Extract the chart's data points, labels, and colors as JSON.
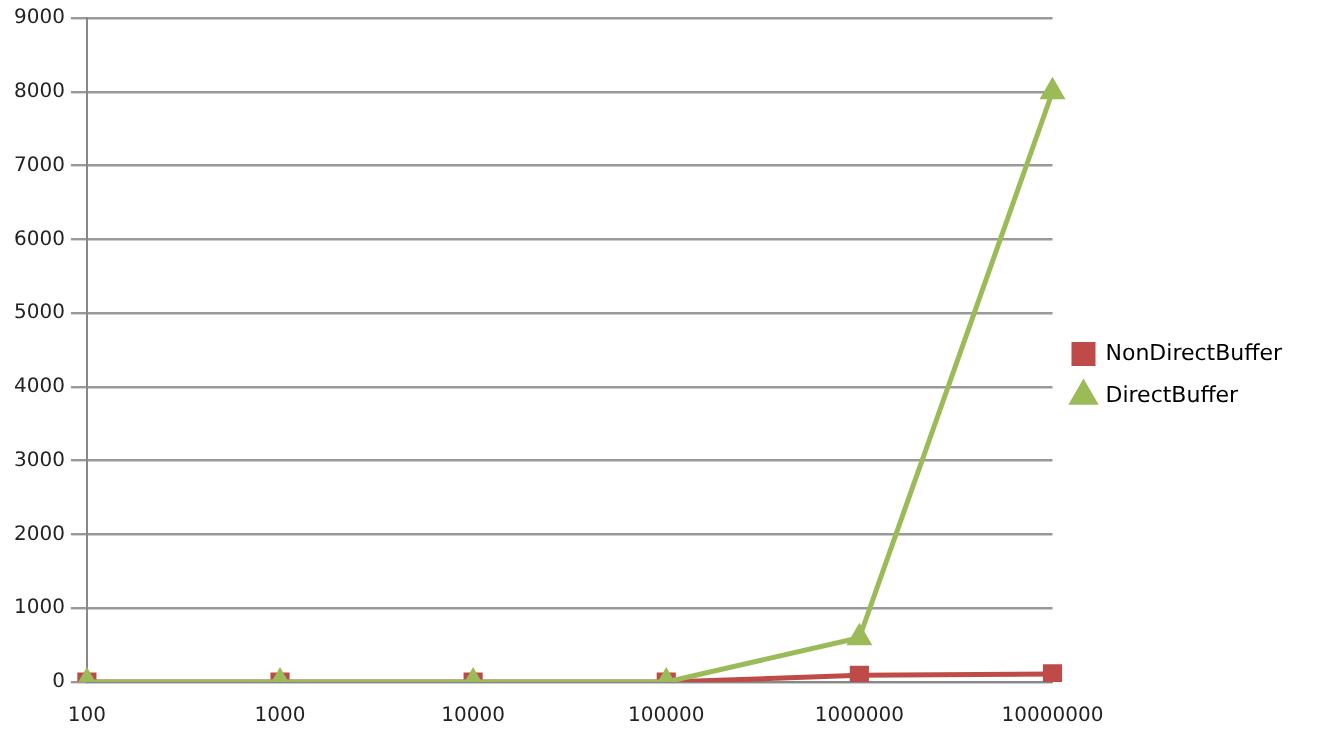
{
  "chart_data": {
    "type": "line",
    "categories": [
      "100",
      "1000",
      "10000",
      "100000",
      "1000000",
      "10000000"
    ],
    "series": [
      {
        "name": "NonDirectBuffer",
        "color": "#be4b48",
        "marker": "square",
        "values": [
          0,
          0,
          0,
          0,
          90,
          110
        ]
      },
      {
        "name": "DirectBuffer",
        "color": "#9bbb59",
        "marker": "triangle",
        "values": [
          0,
          0,
          0,
          0,
          600,
          8000
        ]
      }
    ],
    "ylim": [
      0,
      9000
    ],
    "yticks": [
      0,
      1000,
      2000,
      3000,
      4000,
      5000,
      6000,
      7000,
      8000,
      9000
    ],
    "grid": "y",
    "legend": "right",
    "line_style": "solid"
  }
}
